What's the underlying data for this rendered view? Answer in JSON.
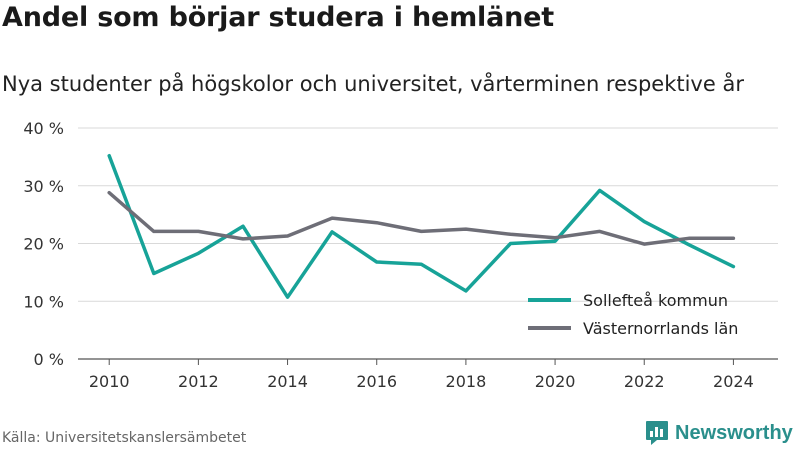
{
  "title": "Andel som börjar studera i hemlänet",
  "subtitle": "Nya studenter på högskolor och universitet, vårterminen respektive år",
  "source": "Källa: Universitetskanslersämbetet",
  "brand": {
    "name": "Newsworthy",
    "icon": "newsworthy-logo-icon",
    "color": "#2a8f8c"
  },
  "chart_data": {
    "type": "line",
    "title": "Andel som börjar studera i hemlänet",
    "subtitle": "Nya studenter på högskolor och universitet, vårterminen respektive år",
    "xlabel": "",
    "ylabel": "",
    "x": [
      2010,
      2011,
      2012,
      2013,
      2014,
      2015,
      2016,
      2017,
      2018,
      2019,
      2020,
      2021,
      2022,
      2023,
      2024
    ],
    "xticks": [
      "2010",
      "2012",
      "2014",
      "2016",
      "2018",
      "2020",
      "2022",
      "2024"
    ],
    "ylim": [
      0,
      40
    ],
    "yticks": [
      0,
      10,
      20,
      30,
      40
    ],
    "ytick_labels": [
      "0 %",
      "10 %",
      "20 %",
      "30 %",
      "40 %"
    ],
    "grid": true,
    "legend_position": "bottom-right",
    "series": [
      {
        "name": "Sollefteå kommun",
        "color": "#17a398",
        "values": [
          35.2,
          14.8,
          18.3,
          23.0,
          10.7,
          22.0,
          16.8,
          16.4,
          11.8,
          20.0,
          20.4,
          29.2,
          23.8,
          19.8,
          16.0
        ]
      },
      {
        "name": "Västernorrlands län",
        "color": "#6e6e77",
        "values": [
          28.8,
          22.1,
          22.1,
          20.8,
          21.3,
          24.4,
          23.6,
          22.1,
          22.5,
          21.6,
          21.0,
          22.1,
          19.9,
          20.9,
          20.9
        ]
      }
    ]
  }
}
